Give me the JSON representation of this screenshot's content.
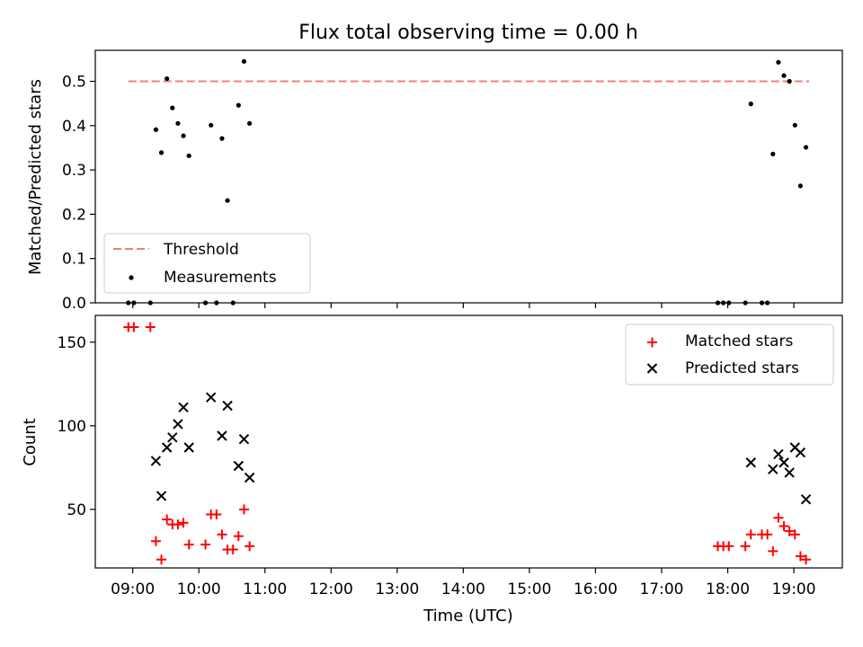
{
  "title": "Flux total observing time = 0.00 h",
  "colors": {
    "threshold": "#f08080",
    "measurements": "#000000",
    "matched": "#ff0000",
    "predicted": "#000000"
  },
  "chart_data": [
    {
      "type": "scatter",
      "ylabel": "Matched/Predicted stars",
      "ylim": [
        0,
        0.57
      ],
      "yticks": [
        0.0,
        0.1,
        0.2,
        0.3,
        0.4,
        0.5
      ],
      "xlim": [
        "08:26",
        "19:44"
      ],
      "grid": false,
      "legend_position": "lower-left",
      "legend": [
        "Threshold",
        "Measurements"
      ],
      "threshold": {
        "name": "Threshold",
        "value": 0.5,
        "x_start": "08:56",
        "x_end": "19:14",
        "style": "dashed"
      },
      "series": [
        {
          "name": "Measurements",
          "points": [
            {
              "x": "08:56",
              "y": 0.0
            },
            {
              "x": "09:01",
              "y": 0.0
            },
            {
              "x": "09:16",
              "y": 0.0
            },
            {
              "x": "09:21",
              "y": 0.391
            },
            {
              "x": "09:26",
              "y": 0.339
            },
            {
              "x": "09:31",
              "y": 0.506
            },
            {
              "x": "09:36",
              "y": 0.44
            },
            {
              "x": "09:41",
              "y": 0.405
            },
            {
              "x": "09:46",
              "y": 0.377
            },
            {
              "x": "09:51",
              "y": 0.332
            },
            {
              "x": "10:06",
              "y": 0.0
            },
            {
              "x": "10:11",
              "y": 0.401
            },
            {
              "x": "10:16",
              "y": 0.0
            },
            {
              "x": "10:21",
              "y": 0.371
            },
            {
              "x": "10:26",
              "y": 0.231
            },
            {
              "x": "10:31",
              "y": 0.0
            },
            {
              "x": "10:36",
              "y": 0.446
            },
            {
              "x": "10:41",
              "y": 0.545
            },
            {
              "x": "10:46",
              "y": 0.405
            },
            {
              "x": "17:51",
              "y": 0.0
            },
            {
              "x": "17:56",
              "y": 0.0
            },
            {
              "x": "18:01",
              "y": 0.0
            },
            {
              "x": "18:16",
              "y": 0.0
            },
            {
              "x": "18:21",
              "y": 0.449
            },
            {
              "x": "18:31",
              "y": 0.0
            },
            {
              "x": "18:36",
              "y": 0.0
            },
            {
              "x": "18:41",
              "y": 0.336
            },
            {
              "x": "18:46",
              "y": 0.543
            },
            {
              "x": "18:51",
              "y": 0.513
            },
            {
              "x": "18:56",
              "y": 0.5
            },
            {
              "x": "19:01",
              "y": 0.401
            },
            {
              "x": "19:06",
              "y": 0.264
            },
            {
              "x": "19:11",
              "y": 0.351
            }
          ]
        }
      ]
    },
    {
      "type": "scatter",
      "xlabel": "Time (UTC)",
      "ylabel": "Count",
      "ylim": [
        15,
        166
      ],
      "yticks": [
        50,
        100,
        150
      ],
      "xlim": [
        "08:26",
        "19:44"
      ],
      "xticks": [
        "09:00",
        "10:00",
        "11:00",
        "12:00",
        "13:00",
        "14:00",
        "15:00",
        "16:00",
        "17:00",
        "18:00",
        "19:00"
      ],
      "grid": false,
      "legend_position": "upper-right",
      "legend": [
        "Matched stars",
        "Predicted stars"
      ],
      "series": [
        {
          "name": "Matched stars",
          "marker": "plus",
          "points": [
            {
              "x": "08:56",
              "y": 159
            },
            {
              "x": "09:01",
              "y": 159
            },
            {
              "x": "09:16",
              "y": 159
            },
            {
              "x": "09:21",
              "y": 31
            },
            {
              "x": "09:26",
              "y": 20
            },
            {
              "x": "09:31",
              "y": 44
            },
            {
              "x": "09:36",
              "y": 41
            },
            {
              "x": "09:41",
              "y": 41
            },
            {
              "x": "09:46",
              "y": 42
            },
            {
              "x": "09:51",
              "y": 29
            },
            {
              "x": "10:06",
              "y": 29
            },
            {
              "x": "10:11",
              "y": 47
            },
            {
              "x": "10:16",
              "y": 47
            },
            {
              "x": "10:21",
              "y": 35
            },
            {
              "x": "10:26",
              "y": 26
            },
            {
              "x": "10:31",
              "y": 26
            },
            {
              "x": "10:36",
              "y": 34
            },
            {
              "x": "10:41",
              "y": 50
            },
            {
              "x": "10:46",
              "y": 28
            },
            {
              "x": "17:51",
              "y": 28
            },
            {
              "x": "17:56",
              "y": 28
            },
            {
              "x": "18:01",
              "y": 28
            },
            {
              "x": "18:16",
              "y": 28
            },
            {
              "x": "18:21",
              "y": 35
            },
            {
              "x": "18:31",
              "y": 35
            },
            {
              "x": "18:36",
              "y": 35
            },
            {
              "x": "18:41",
              "y": 25
            },
            {
              "x": "18:46",
              "y": 45
            },
            {
              "x": "18:51",
              "y": 40
            },
            {
              "x": "18:56",
              "y": 37
            },
            {
              "x": "19:01",
              "y": 35
            },
            {
              "x": "19:06",
              "y": 22
            },
            {
              "x": "19:11",
              "y": 20
            }
          ]
        },
        {
          "name": "Predicted stars",
          "marker": "x",
          "points": [
            {
              "x": "09:21",
              "y": 79
            },
            {
              "x": "09:26",
              "y": 58
            },
            {
              "x": "09:31",
              "y": 87
            },
            {
              "x": "09:36",
              "y": 93
            },
            {
              "x": "09:41",
              "y": 101
            },
            {
              "x": "09:46",
              "y": 111
            },
            {
              "x": "09:51",
              "y": 87
            },
            {
              "x": "10:11",
              "y": 117
            },
            {
              "x": "10:21",
              "y": 94
            },
            {
              "x": "10:26",
              "y": 112
            },
            {
              "x": "10:36",
              "y": 76
            },
            {
              "x": "10:41",
              "y": 92
            },
            {
              "x": "10:46",
              "y": 69
            },
            {
              "x": "18:21",
              "y": 78
            },
            {
              "x": "18:41",
              "y": 74
            },
            {
              "x": "18:46",
              "y": 83
            },
            {
              "x": "18:51",
              "y": 78
            },
            {
              "x": "18:56",
              "y": 72
            },
            {
              "x": "19:01",
              "y": 87
            },
            {
              "x": "19:06",
              "y": 84
            },
            {
              "x": "19:11",
              "y": 56
            }
          ]
        }
      ]
    }
  ]
}
